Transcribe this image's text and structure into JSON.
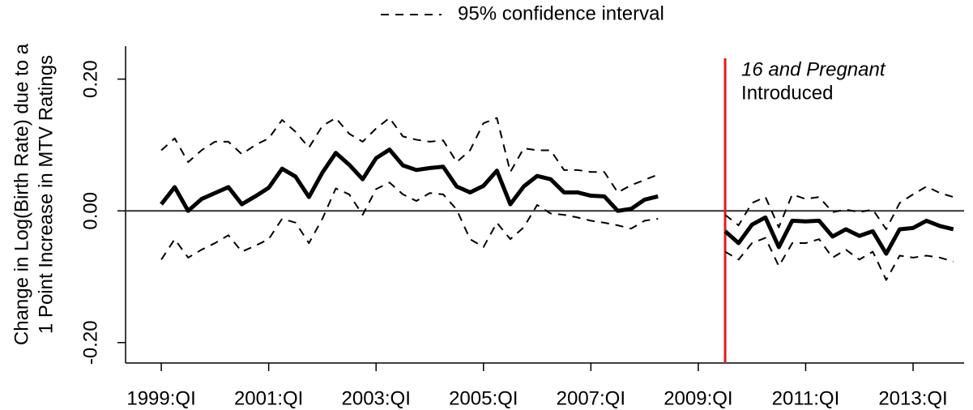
{
  "chart_data": {
    "type": "line",
    "ylabel": [
      "Change in Log(Birth Rate) due to a",
      "1 Point Increase in MTV Ratings"
    ],
    "x": [
      1999,
      1999.25,
      1999.5,
      1999.75,
      2000,
      2000.25,
      2000.5,
      2000.75,
      2001,
      2001.25,
      2001.5,
      2001.75,
      2002,
      2002.25,
      2002.5,
      2002.75,
      2003,
      2003.25,
      2003.5,
      2003.75,
      2004,
      2004.25,
      2004.5,
      2004.75,
      2005,
      2005.25,
      2005.5,
      2005.75,
      2006,
      2006.25,
      2006.5,
      2006.75,
      2007,
      2007.25,
      2007.5,
      2007.75,
      2008,
      2008.25,
      2008.5,
      2008.75,
      2009,
      2009.25,
      2009.5,
      2009.75,
      2010,
      2010.25,
      2010.5,
      2010.75,
      2011,
      2011.25,
      2011.5,
      2011.75,
      2012,
      2012.25,
      2012.5,
      2012.75,
      2013,
      2013.25,
      2013.5,
      2013.75
    ],
    "series": [
      {
        "color": "#000000",
        "values": [
          0.01,
          0.036,
          0.0,
          0.018,
          0.027,
          0.036,
          0.01,
          0.022,
          0.035,
          0.064,
          0.052,
          0.021,
          0.058,
          0.088,
          0.07,
          0.048,
          0.08,
          0.093,
          0.069,
          0.062,
          0.065,
          0.067,
          0.037,
          0.028,
          0.038,
          0.061,
          0.01,
          0.037,
          0.053,
          0.048,
          0.028,
          0.028,
          0.023,
          0.022,
          0.0,
          0.003,
          0.017,
          0.022,
          null,
          null,
          null,
          null,
          -0.031,
          -0.049,
          -0.021,
          -0.01,
          -0.055,
          -0.015,
          -0.016,
          -0.015,
          -0.039,
          -0.028,
          -0.038,
          -0.031,
          -0.065,
          -0.028,
          -0.026,
          -0.015,
          -0.023,
          -0.028
        ]
      }
    ],
    "confidence_interval": {
      "name": "95% confidence interval",
      "color": "#000000",
      "upper": [
        0.092,
        0.11,
        0.074,
        0.092,
        0.105,
        0.105,
        0.086,
        0.1,
        0.11,
        0.138,
        0.12,
        0.096,
        0.129,
        0.141,
        0.117,
        0.105,
        0.125,
        0.141,
        0.113,
        0.108,
        0.105,
        0.107,
        0.074,
        0.092,
        0.133,
        0.141,
        0.059,
        0.095,
        0.092,
        0.092,
        0.062,
        0.062,
        0.059,
        0.059,
        0.028,
        0.039,
        0.047,
        0.055,
        null,
        null,
        null,
        null,
        -0.006,
        -0.022,
        0.012,
        0.021,
        -0.025,
        0.025,
        0.018,
        0.021,
        -0.002,
        0.002,
        -0.002,
        0.002,
        -0.028,
        0.012,
        0.025,
        0.037,
        0.027,
        0.021
      ],
      "lower": [
        -0.074,
        -0.043,
        -0.071,
        -0.059,
        -0.049,
        -0.037,
        -0.062,
        -0.053,
        -0.043,
        -0.012,
        -0.018,
        -0.049,
        -0.012,
        0.034,
        0.025,
        -0.006,
        0.033,
        0.043,
        0.025,
        0.015,
        0.027,
        0.025,
        0.002,
        -0.043,
        -0.055,
        -0.018,
        -0.043,
        -0.025,
        0.009,
        -0.004,
        -0.006,
        -0.01,
        -0.015,
        -0.018,
        -0.022,
        -0.027,
        -0.015,
        -0.012,
        null,
        null,
        null,
        null,
        -0.062,
        -0.074,
        -0.049,
        -0.041,
        -0.084,
        -0.049,
        -0.049,
        -0.043,
        -0.071,
        -0.059,
        -0.074,
        -0.062,
        -0.105,
        -0.068,
        -0.071,
        -0.068,
        -0.071,
        -0.077
      ]
    },
    "reference_line": {
      "y": 0,
      "color": "#333333"
    },
    "event": {
      "x": 2009.5,
      "color": "#e31a1c",
      "label": [
        "16 and Pregnant",
        "Introduced"
      ]
    },
    "xlim": [
      1998.335,
      2013.95
    ],
    "ylim": [
      -0.231,
      0.25
    ],
    "xticks": [
      {
        "value": 1999,
        "label": "1999:QI"
      },
      {
        "value": 2001,
        "label": "2001:QI"
      },
      {
        "value": 2003,
        "label": "2003:QI"
      },
      {
        "value": 2005,
        "label": "2005:QI"
      },
      {
        "value": 2007,
        "label": "2007:QI"
      },
      {
        "value": 2009,
        "label": "2009:QI"
      },
      {
        "value": 2011,
        "label": "2011:QI"
      },
      {
        "value": 2013,
        "label": "2013:QI"
      }
    ],
    "yticks": [
      {
        "value": 0.2,
        "label": "0.20"
      },
      {
        "value": 0,
        "label": "0.00"
      },
      {
        "value": -0.2,
        "label": "-0.20"
      }
    ],
    "legend": "top"
  }
}
